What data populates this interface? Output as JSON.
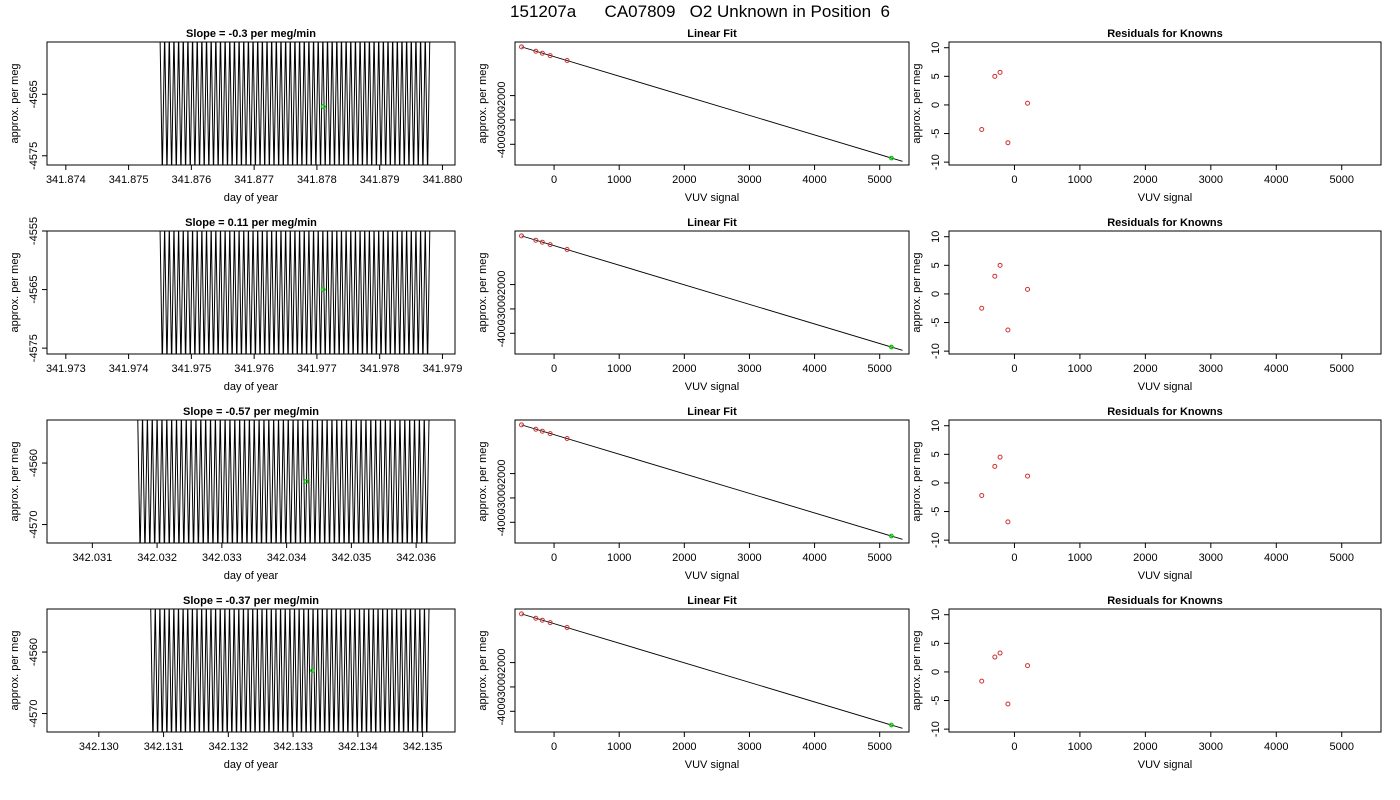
{
  "figure_title": "151207a      CA07809   O2 Unknown in Position  6",
  "colors": {
    "trace": "#000000",
    "unknown_point": "#00cc00",
    "known_point": "#cc3333",
    "axis": "#000000"
  },
  "chart_data": [
    {
      "type": "line",
      "row": 0,
      "panel": "trace",
      "title": "Slope =  -0.3  per meg/min",
      "xlabel": "day of year",
      "ylabel": "approx. per meg",
      "xlim": [
        341.8737,
        341.8802
      ],
      "ylim": [
        -4576.5,
        -4556.5
      ],
      "xticks": [
        341.874,
        341.875,
        341.876,
        341.877,
        341.878,
        341.879,
        341.88
      ],
      "xtick_labels": [
        "341.874",
        "341.875",
        "341.876",
        "341.877",
        "341.878",
        "341.879",
        "341.880"
      ],
      "yticks": [
        -4565,
        -4575
      ],
      "ytick_labels": [
        "-4565",
        "-4575"
      ],
      "trace": {
        "x_start": 341.8755,
        "x_end": 341.8798,
        "y_high": -4555,
        "y_low": -4578,
        "cycles": 58
      },
      "unknown_point": {
        "x": 341.8781,
        "y": -4567
      }
    },
    {
      "type": "scatter",
      "row": 0,
      "panel": "linear_fit",
      "title": "Linear Fit",
      "xlabel": "VUV signal",
      "ylabel": "approx. per meg",
      "xlim": [
        -600,
        5450
      ],
      "ylim": [
        -4850,
        200
      ],
      "xticks": [
        0,
        1000,
        2000,
        3000,
        4000,
        5000
      ],
      "xtick_labels": [
        "0",
        "1000",
        "2000",
        "3000",
        "4000",
        "5000"
      ],
      "yticks": [
        -2000,
        -3000,
        -4000
      ],
      "ytick_labels": [
        "-2000",
        "-3000",
        "-4000"
      ],
      "fit_line": {
        "x": [
          -500,
          5350
        ],
        "y": [
          0,
          -4700
        ]
      },
      "known_points": {
        "x": [
          -500,
          -280,
          -180,
          -60,
          200
        ],
        "y": [
          0,
          -180,
          -260,
          -360,
          -560
        ]
      },
      "unknown_point": {
        "x": 5180,
        "y": -4567
      }
    },
    {
      "type": "scatter",
      "row": 0,
      "panel": "residuals",
      "title": "Residuals for Knowns",
      "xlabel": "VUV signal",
      "ylabel": "approx. per meg",
      "xlim": [
        -1000,
        5600
      ],
      "ylim": [
        -10.5,
        11
      ],
      "xticks": [
        0,
        1000,
        2000,
        3000,
        4000,
        5000
      ],
      "xtick_labels": [
        "0",
        "1000",
        "2000",
        "3000",
        "4000",
        "5000"
      ],
      "yticks": [
        10,
        5,
        0,
        -5,
        -10
      ],
      "ytick_labels": [
        "10",
        "5",
        "0",
        "-5",
        "-10"
      ],
      "known_points": {
        "x": [
          -500,
          -300,
          -220,
          -100,
          200
        ],
        "y": [
          -4.3,
          5,
          5.7,
          -6.6,
          0.3
        ]
      }
    },
    {
      "type": "line",
      "row": 1,
      "panel": "trace",
      "title": "Slope =  0.11  per meg/min",
      "xlabel": "day of year",
      "ylabel": "approx. per meg",
      "xlim": [
        341.9727,
        341.9792
      ],
      "ylim": [
        -4576,
        -4555
      ],
      "xticks": [
        341.973,
        341.974,
        341.975,
        341.976,
        341.977,
        341.978,
        341.979
      ],
      "xtick_labels": [
        "341.973",
        "341.974",
        "341.975",
        "341.976",
        "341.977",
        "341.978",
        "341.979"
      ],
      "yticks": [
        -4555,
        -4565,
        -4575
      ],
      "ytick_labels": [
        "-4555",
        "-4565",
        "-4575"
      ],
      "trace": {
        "x_start": 341.9745,
        "x_end": 341.9788,
        "y_high": -4554,
        "y_low": -4578,
        "cycles": 58
      },
      "unknown_point": {
        "x": 341.9771,
        "y": -4565
      }
    },
    {
      "type": "scatter",
      "row": 1,
      "panel": "linear_fit",
      "title": "Linear Fit",
      "xlabel": "VUV signal",
      "ylabel": "approx. per meg",
      "xlim": [
        -600,
        5450
      ],
      "ylim": [
        -4850,
        200
      ],
      "xticks": [
        0,
        1000,
        2000,
        3000,
        4000,
        5000
      ],
      "xtick_labels": [
        "0",
        "1000",
        "2000",
        "3000",
        "4000",
        "5000"
      ],
      "yticks": [
        -2000,
        -3000,
        -4000
      ],
      "ytick_labels": [
        "-2000",
        "-3000",
        "-4000"
      ],
      "fit_line": {
        "x": [
          -500,
          5350
        ],
        "y": [
          0,
          -4700
        ]
      },
      "known_points": {
        "x": [
          -500,
          -280,
          -180,
          -60,
          200
        ],
        "y": [
          0,
          -180,
          -260,
          -360,
          -560
        ]
      },
      "unknown_point": {
        "x": 5180,
        "y": -4565
      }
    },
    {
      "type": "scatter",
      "row": 1,
      "panel": "residuals",
      "title": "Residuals for Knowns",
      "xlabel": "VUV signal",
      "ylabel": "approx. per meg",
      "xlim": [
        -1000,
        5600
      ],
      "ylim": [
        -10.5,
        11
      ],
      "xticks": [
        0,
        1000,
        2000,
        3000,
        4000,
        5000
      ],
      "xtick_labels": [
        "0",
        "1000",
        "2000",
        "3000",
        "4000",
        "5000"
      ],
      "yticks": [
        10,
        5,
        0,
        -5,
        -10
      ],
      "ytick_labels": [
        "10",
        "5",
        "0",
        "-5",
        "-10"
      ],
      "known_points": {
        "x": [
          -500,
          -300,
          -220,
          -100,
          200
        ],
        "y": [
          -2.5,
          3.1,
          5,
          -6.3,
          0.8
        ]
      }
    },
    {
      "type": "line",
      "row": 2,
      "panel": "trace",
      "title": "Slope =  -0.57  per meg/min",
      "xlabel": "day of year",
      "ylabel": "approx. per meg",
      "xlim": [
        342.0303,
        342.0366
      ],
      "ylim": [
        -4573,
        -4553
      ],
      "xticks": [
        342.031,
        342.032,
        342.033,
        342.034,
        342.035,
        342.036
      ],
      "xtick_labels": [
        "342.031",
        "342.032",
        "342.033",
        "342.034",
        "342.035",
        "342.036"
      ],
      "yticks": [
        -4560,
        -4570
      ],
      "ytick_labels": [
        "-4560",
        "-4570"
      ],
      "trace": {
        "x_start": 342.0317,
        "x_end": 342.0362,
        "y_high": -4552,
        "y_low": -4575,
        "cycles": 60
      },
      "unknown_point": {
        "x": 342.0343,
        "y": -4563
      }
    },
    {
      "type": "scatter",
      "row": 2,
      "panel": "linear_fit",
      "title": "Linear Fit",
      "xlabel": "VUV signal",
      "ylabel": "approx. per meg",
      "xlim": [
        -600,
        5450
      ],
      "ylim": [
        -4850,
        200
      ],
      "xticks": [
        0,
        1000,
        2000,
        3000,
        4000,
        5000
      ],
      "xtick_labels": [
        "0",
        "1000",
        "2000",
        "3000",
        "4000",
        "5000"
      ],
      "yticks": [
        -2000,
        -3000,
        -4000
      ],
      "ytick_labels": [
        "-2000",
        "-3000",
        "-4000"
      ],
      "fit_line": {
        "x": [
          -500,
          5350
        ],
        "y": [
          0,
          -4700
        ]
      },
      "known_points": {
        "x": [
          -500,
          -280,
          -180,
          -60,
          200
        ],
        "y": [
          0,
          -180,
          -260,
          -360,
          -560
        ]
      },
      "unknown_point": {
        "x": 5180,
        "y": -4563
      }
    },
    {
      "type": "scatter",
      "row": 2,
      "panel": "residuals",
      "title": "Residuals for Knowns",
      "xlabel": "VUV signal",
      "ylabel": "approx. per meg",
      "xlim": [
        -1000,
        5600
      ],
      "ylim": [
        -10.5,
        11
      ],
      "xticks": [
        0,
        1000,
        2000,
        3000,
        4000,
        5000
      ],
      "xtick_labels": [
        "0",
        "1000",
        "2000",
        "3000",
        "4000",
        "5000"
      ],
      "yticks": [
        10,
        5,
        0,
        -5,
        -10
      ],
      "ytick_labels": [
        "10",
        "5",
        "0",
        "-5",
        "-10"
      ],
      "known_points": {
        "x": [
          -500,
          -300,
          -220,
          -100,
          200
        ],
        "y": [
          -2.2,
          2.9,
          4.5,
          -6.8,
          1.2
        ]
      }
    },
    {
      "type": "line",
      "row": 3,
      "panel": "trace",
      "title": "Slope =  -0.37  per meg/min",
      "xlabel": "day of year",
      "ylabel": "approx. per meg",
      "xlim": [
        342.1292,
        342.1355
      ],
      "ylim": [
        -4573,
        -4553
      ],
      "xticks": [
        342.13,
        342.131,
        342.132,
        342.133,
        342.134,
        342.135
      ],
      "xtick_labels": [
        "342.130",
        "342.131",
        "342.132",
        "342.133",
        "342.134",
        "342.135"
      ],
      "yticks": [
        -4560,
        -4570
      ],
      "ytick_labels": [
        "-4560",
        "-4570"
      ],
      "trace": {
        "x_start": 342.1308,
        "x_end": 342.1351,
        "y_high": -4552,
        "y_low": -4575,
        "cycles": 60
      },
      "unknown_point": {
        "x": 342.1333,
        "y": -4563
      }
    },
    {
      "type": "scatter",
      "row": 3,
      "panel": "linear_fit",
      "title": "Linear Fit",
      "xlabel": "VUV signal",
      "ylabel": "approx. per meg",
      "xlim": [
        -600,
        5450
      ],
      "ylim": [
        -4850,
        200
      ],
      "xticks": [
        0,
        1000,
        2000,
        3000,
        4000,
        5000
      ],
      "xtick_labels": [
        "0",
        "1000",
        "2000",
        "3000",
        "4000",
        "5000"
      ],
      "yticks": [
        -2000,
        -3000,
        -4000
      ],
      "ytick_labels": [
        "-2000",
        "-3000",
        "-4000"
      ],
      "fit_line": {
        "x": [
          -500,
          5350
        ],
        "y": [
          0,
          -4700
        ]
      },
      "known_points": {
        "x": [
          -500,
          -280,
          -180,
          -60,
          200
        ],
        "y": [
          0,
          -180,
          -260,
          -360,
          -560
        ]
      },
      "unknown_point": {
        "x": 5180,
        "y": -4563
      }
    },
    {
      "type": "scatter",
      "row": 3,
      "panel": "residuals",
      "title": "Residuals for Knowns",
      "xlabel": "VUV signal",
      "ylabel": "approx. per meg",
      "xlim": [
        -1000,
        5600
      ],
      "ylim": [
        -10.5,
        11
      ],
      "xticks": [
        0,
        1000,
        2000,
        3000,
        4000,
        5000
      ],
      "xtick_labels": [
        "0",
        "1000",
        "2000",
        "3000",
        "4000",
        "5000"
      ],
      "yticks": [
        10,
        5,
        0,
        -5,
        -10
      ],
      "ytick_labels": [
        "10",
        "5",
        "0",
        "-5",
        "-10"
      ],
      "known_points": {
        "x": [
          -500,
          -300,
          -220,
          -100,
          200
        ],
        "y": [
          -1.6,
          2.6,
          3.3,
          -5.6,
          1.1
        ]
      }
    }
  ]
}
